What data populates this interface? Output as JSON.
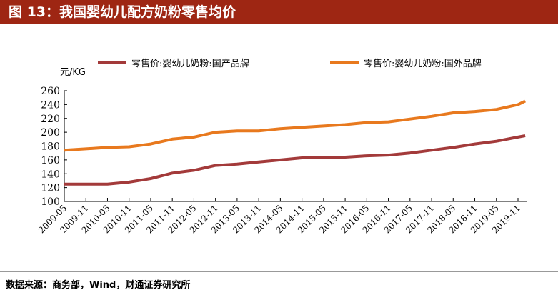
{
  "title": "图 13：我国婴幼儿配方奶粉零售均价",
  "source": "数据来源：商务部，Wind，财通证券研究所",
  "chart_data": {
    "type": "line",
    "ylabel": "元/KG",
    "ylim": [
      100,
      260
    ],
    "yticks": [
      100,
      120,
      140,
      160,
      180,
      200,
      220,
      240,
      260
    ],
    "xticks": [
      "2009-05",
      "2009-11",
      "2010-05",
      "2010-11",
      "2011-05",
      "2011-11",
      "2012-05",
      "2012-11",
      "2013-05",
      "2013-11",
      "2014-05",
      "2014-11",
      "2015-05",
      "2015-11",
      "2016-05",
      "2016-11",
      "2017-05",
      "2017-11",
      "2018-05",
      "2018-11",
      "2019-05",
      "2019-11"
    ],
    "x": [
      "2009-05",
      "2009-11",
      "2010-05",
      "2010-11",
      "2011-05",
      "2011-11",
      "2012-05",
      "2012-11",
      "2013-05",
      "2013-11",
      "2014-05",
      "2014-11",
      "2015-05",
      "2015-11",
      "2016-05",
      "2016-11",
      "2017-05",
      "2017-11",
      "2018-05",
      "2018-11",
      "2019-05",
      "2019-11",
      "2020-01"
    ],
    "grid": false,
    "legend": "top",
    "series": [
      {
        "name": "零售价:婴幼儿奶粉:国产品牌",
        "color": "#a33a3a",
        "values": [
          125,
          125,
          125,
          128,
          133,
          141,
          145,
          152,
          154,
          157,
          160,
          163,
          164,
          164,
          166,
          167,
          170,
          174,
          178,
          183,
          187,
          193,
          195
        ]
      },
      {
        "name": "零售价:婴幼儿奶粉:国外品牌",
        "color": "#e8791e",
        "values": [
          174,
          176,
          178,
          179,
          183,
          190,
          193,
          200,
          202,
          202,
          205,
          207,
          209,
          211,
          214,
          215,
          219,
          223,
          228,
          230,
          233,
          240,
          245
        ]
      }
    ]
  }
}
